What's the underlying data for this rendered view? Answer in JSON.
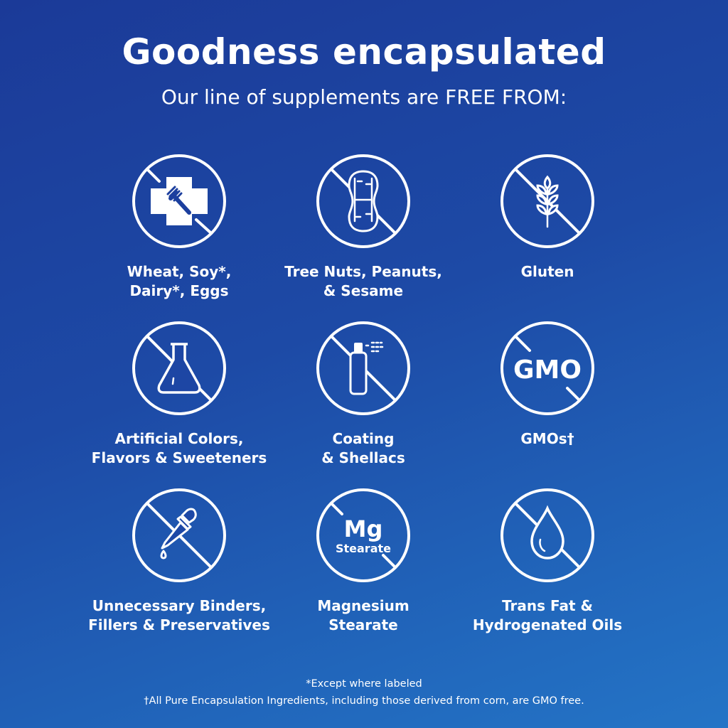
{
  "header": {
    "title": "Goodness encapsulated",
    "subtitle": "Our line of supplements are FREE FROM:"
  },
  "items": [
    {
      "label": "Wheat, Soy*,\nDairy*, Eggs",
      "icon": "no-allergen-cross-fork-icon"
    },
    {
      "label": "Tree Nuts, Peanuts,\n& Sesame",
      "icon": "no-peanut-icon"
    },
    {
      "label": "Gluten",
      "icon": "no-wheat-icon"
    },
    {
      "label": "Artificial Colors,\nFlavors & Sweeteners",
      "icon": "no-flask-icon"
    },
    {
      "label": "Coating\n& Shellacs",
      "icon": "no-spray-bottle-icon"
    },
    {
      "label": "GMOs†",
      "icon": "no-gmo-icon",
      "icon_text": "GMO"
    },
    {
      "label": "Unnecessary Binders,\nFillers & Preservatives",
      "icon": "no-dropper-icon"
    },
    {
      "label": "Magnesium\nStearate",
      "icon": "no-mg-stearate-icon",
      "icon_text": "Mg",
      "icon_subtext": "Stearate"
    },
    {
      "label": "Trans Fat &\nHydrogenated Oils",
      "icon": "no-oil-drop-icon"
    }
  ],
  "footnotes": {
    "asterisk": "*Except where labeled",
    "dagger": "†All Pure Encapsulation Ingredients, including those derived from corn, are GMO free."
  },
  "colors": {
    "background_start": "#1b3a98",
    "background_end": "#2474c6",
    "foreground": "#ffffff"
  }
}
